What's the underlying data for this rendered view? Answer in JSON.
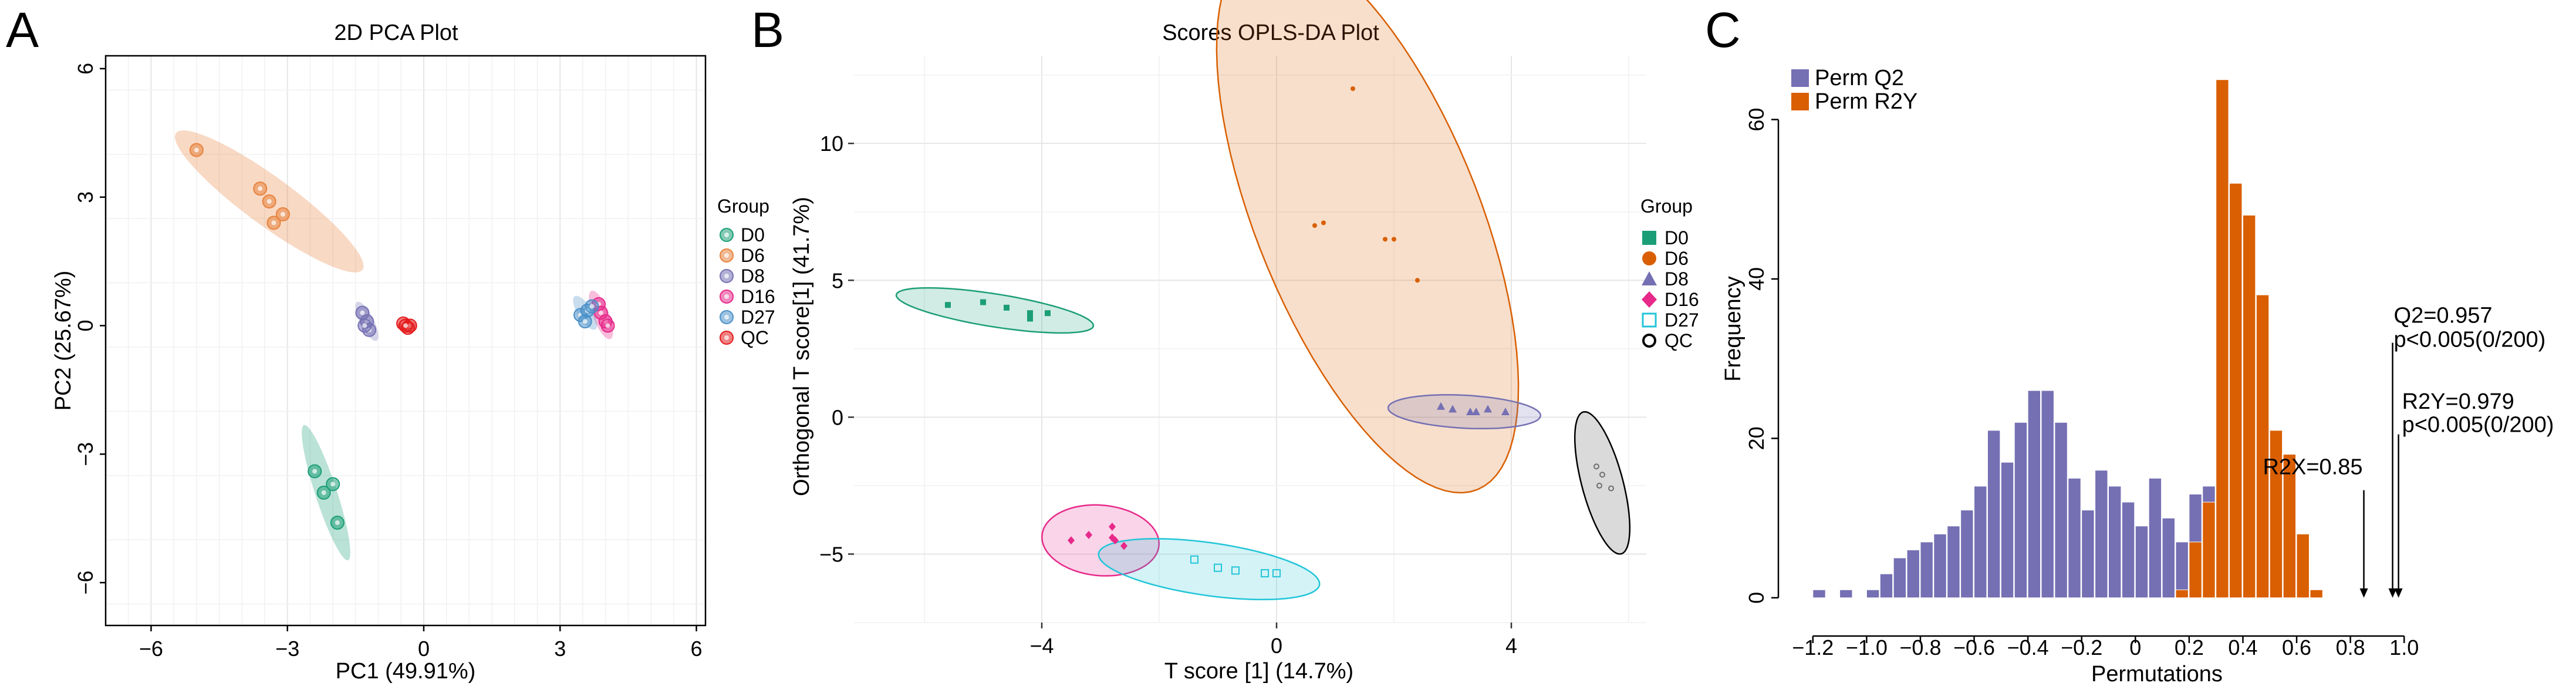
{
  "chart_data": [
    {
      "type": "scatter",
      "panel_label": "A",
      "title": "2D PCA Plot",
      "xlabel": "PC1 (49.91%)",
      "ylabel": "PC2 (25.67%)",
      "xlim": [
        -7,
        6.2
      ],
      "ylim": [
        -7.0,
        6.3
      ],
      "xticks": [
        -6,
        -3,
        0,
        3,
        6
      ],
      "yticks": [
        -6,
        -3,
        0,
        3,
        6
      ],
      "legend": {
        "title": "Group",
        "position": "right"
      },
      "series": [
        {
          "name": "D0",
          "color": "#1b9e77",
          "points": [
            [
              -2.4,
              -3.4
            ],
            [
              -2.2,
              -3.9
            ],
            [
              -2.0,
              -3.7
            ],
            [
              -1.9,
              -4.6
            ]
          ],
          "ellipse": {
            "cx": -2.15,
            "cy": -3.9,
            "a": 1.65,
            "b": 0.24,
            "angle_deg": -73
          }
        },
        {
          "name": "D6",
          "color": "#e8823c",
          "points": [
            [
              -5.0,
              4.1
            ],
            [
              -3.6,
              3.2
            ],
            [
              -3.4,
              2.9
            ],
            [
              -3.1,
              2.6
            ],
            [
              -3.3,
              2.4
            ]
          ],
          "ellipse": {
            "cx": -3.4,
            "cy": 2.9,
            "a": 2.6,
            "b": 0.55,
            "angle_deg": -38
          }
        },
        {
          "name": "D8",
          "color": "#7570b3",
          "points": [
            [
              -1.35,
              0.3
            ],
            [
              -1.25,
              0.1
            ],
            [
              -1.2,
              -0.1
            ],
            [
              -1.3,
              0.0
            ]
          ],
          "ellipse": {
            "cx": -1.25,
            "cy": 0.1,
            "a": 0.5,
            "b": 0.15,
            "angle_deg": -65
          }
        },
        {
          "name": "D16",
          "color": "#e7298a",
          "points": [
            [
              3.85,
              0.5
            ],
            [
              4.0,
              0.1
            ],
            [
              3.9,
              0.3
            ],
            [
              4.05,
              0.0
            ]
          ],
          "ellipse": {
            "cx": 3.9,
            "cy": 0.25,
            "a": 0.6,
            "b": 0.18,
            "angle_deg": -70
          }
        },
        {
          "name": "D27",
          "color": "#4a90c8",
          "points": [
            [
              3.45,
              0.25
            ],
            [
              3.6,
              0.35
            ],
            [
              3.55,
              0.1
            ],
            [
              3.7,
              0.45
            ]
          ],
          "ellipse": {
            "cx": 3.55,
            "cy": 0.3,
            "a": 0.45,
            "b": 0.16,
            "angle_deg": -60
          }
        },
        {
          "name": "QC",
          "color": "#e41a1c",
          "points": [
            [
              -0.45,
              0.05
            ],
            [
              -0.35,
              -0.05
            ],
            [
              -0.3,
              0.0
            ],
            [
              -0.4,
              0.0
            ]
          ],
          "ellipse": {
            "cx": -0.37,
            "cy": 0.0,
            "a": 0.22,
            "b": 0.1,
            "angle_deg": 0
          }
        }
      ]
    },
    {
      "type": "scatter",
      "panel_label": "B",
      "title": "Scores OPLS-DA Plot",
      "xlabel": "T  score [1] (14.7%)",
      "ylabel": "Orthogonal T score[1] (41.7%)",
      "xlim": [
        -7.2,
        6.3
      ],
      "ylim": [
        -7.5,
        13.2
      ],
      "xticks": [
        -4,
        0,
        4
      ],
      "yticks": [
        -5,
        0,
        5,
        10
      ],
      "legend": {
        "title": "Group",
        "position": "right"
      },
      "series": [
        {
          "name": "D0",
          "color": "#1b9e77",
          "marker": "square",
          "points": [
            [
              -5.6,
              4.1
            ],
            [
              -5.0,
              4.2
            ],
            [
              -4.6,
              4.0
            ],
            [
              -4.2,
              3.8
            ],
            [
              -3.9,
              3.8
            ],
            [
              -4.2,
              3.6
            ]
          ],
          "ellipse": {
            "cx": -4.8,
            "cy": 3.9,
            "a": 1.7,
            "b": 0.28,
            "angle_deg": -9
          }
        },
        {
          "name": "D6",
          "color": "#d95f02",
          "marker": "circle",
          "points": [
            [
              1.3,
              12.0
            ],
            [
              0.8,
              7.1
            ],
            [
              0.65,
              7.0
            ],
            [
              1.85,
              6.5
            ],
            [
              2.0,
              6.5
            ],
            [
              2.4,
              5.0
            ]
          ],
          "ellipse": {
            "cx": 1.55,
            "cy": 7.3,
            "a": 5.0,
            "b": 1.9,
            "angle_deg": -68
          }
        },
        {
          "name": "D8",
          "color": "#7570b3",
          "marker": "triangle",
          "points": [
            [
              2.8,
              0.4
            ],
            [
              3.0,
              0.3
            ],
            [
              3.3,
              0.2
            ],
            [
              3.4,
              0.2
            ],
            [
              3.6,
              0.3
            ],
            [
              3.9,
              0.2
            ]
          ],
          "ellipse": {
            "cx": 3.2,
            "cy": 0.2,
            "a": 1.3,
            "b": 0.28,
            "angle_deg": -3
          }
        },
        {
          "name": "D16",
          "color": "#e7298a",
          "marker": "diamond",
          "points": [
            [
              -3.5,
              -4.5
            ],
            [
              -3.2,
              -4.3
            ],
            [
              -2.8,
              -4.4
            ],
            [
              -2.8,
              -4.0
            ],
            [
              -2.6,
              -4.7
            ],
            [
              -2.75,
              -4.5
            ]
          ],
          "ellipse": {
            "cx": -3.0,
            "cy": -4.5,
            "a": 1.0,
            "b": 0.6,
            "angle_deg": -5
          }
        },
        {
          "name": "D27",
          "color": "#22c5d8",
          "marker": "square-open",
          "points": [
            [
              -1.4,
              -5.2
            ],
            [
              -1.0,
              -5.5
            ],
            [
              -0.7,
              -5.6
            ],
            [
              -0.2,
              -5.7
            ],
            [
              0.0,
              -5.7
            ]
          ],
          "ellipse": {
            "cx": -1.15,
            "cy": -5.55,
            "a": 1.9,
            "b": 0.45,
            "angle_deg": -8
          }
        },
        {
          "name": "QC",
          "color": "#6e6e6e",
          "marker": "circle-open",
          "points": [
            [
              5.45,
              -1.8
            ],
            [
              5.55,
              -2.1
            ],
            [
              5.5,
              -2.5
            ],
            [
              5.7,
              -2.6
            ]
          ],
          "ellipse": {
            "cx": 5.55,
            "cy": -2.4,
            "a": 1.25,
            "b": 0.35,
            "angle_deg": -75
          }
        }
      ]
    },
    {
      "type": "bar",
      "subtype": "histogram",
      "panel_label": "C",
      "xlabel": "Permutations",
      "ylabel": "Frequency",
      "xlim": [
        -1.3,
        1.1
      ],
      "ylim": [
        -2,
        68
      ],
      "xticks": [
        -1.2,
        -1.0,
        -0.8,
        -0.6,
        -0.4,
        -0.2,
        0.0,
        0.2,
        0.4,
        0.6,
        0.8,
        1.0
      ],
      "xtick_labels": [
        "−1.2",
        "−1.0",
        "−0.8",
        "−0.6",
        "−0.4",
        "−0.2",
        "0",
        "0.2",
        "0.4",
        "0.6",
        "0.8",
        "1.0"
      ],
      "yticks": [
        0,
        20,
        40,
        60
      ],
      "bin_width": 0.05,
      "legend": {
        "position": "top-left"
      },
      "series": [
        {
          "name": "Perm Q2",
          "color": "#7570b3",
          "bin_starts": [
            -1.2,
            -1.1,
            -1.05,
            -1.0,
            -0.95,
            -0.9,
            -0.85,
            -0.8,
            -0.75,
            -0.7,
            -0.65,
            -0.6,
            -0.55,
            -0.5,
            -0.45,
            -0.4,
            -0.35,
            -0.3,
            -0.25,
            -0.2,
            -0.15,
            -0.1,
            -0.05,
            0.0,
            0.05,
            0.1,
            0.15,
            0.2,
            0.25
          ],
          "values": [
            1,
            1,
            0,
            1,
            3,
            5,
            6,
            7,
            8,
            9,
            11,
            14,
            21,
            17,
            22,
            26,
            26,
            22,
            15,
            11,
            16,
            14,
            12,
            9,
            15,
            10,
            7,
            13,
            14
          ]
        },
        {
          "name": "Perm R2Y",
          "color": "#d95f02",
          "bin_starts": [
            0.15,
            0.2,
            0.25,
            0.3,
            0.35,
            0.4,
            0.45,
            0.5,
            0.55,
            0.6,
            0.65
          ],
          "values": [
            1,
            7,
            12,
            65,
            52,
            48,
            38,
            21,
            18,
            8,
            1
          ]
        }
      ],
      "annotations": [
        {
          "text": "R2X=0.85",
          "x": 0.85
        },
        {
          "text": "Q2=0.957",
          "line2": "p<0.005(0/200)",
          "x": 0.957
        },
        {
          "text": "R2Y=0.979",
          "line2": "p<0.005(0/200)",
          "x": 0.979
        }
      ]
    }
  ]
}
